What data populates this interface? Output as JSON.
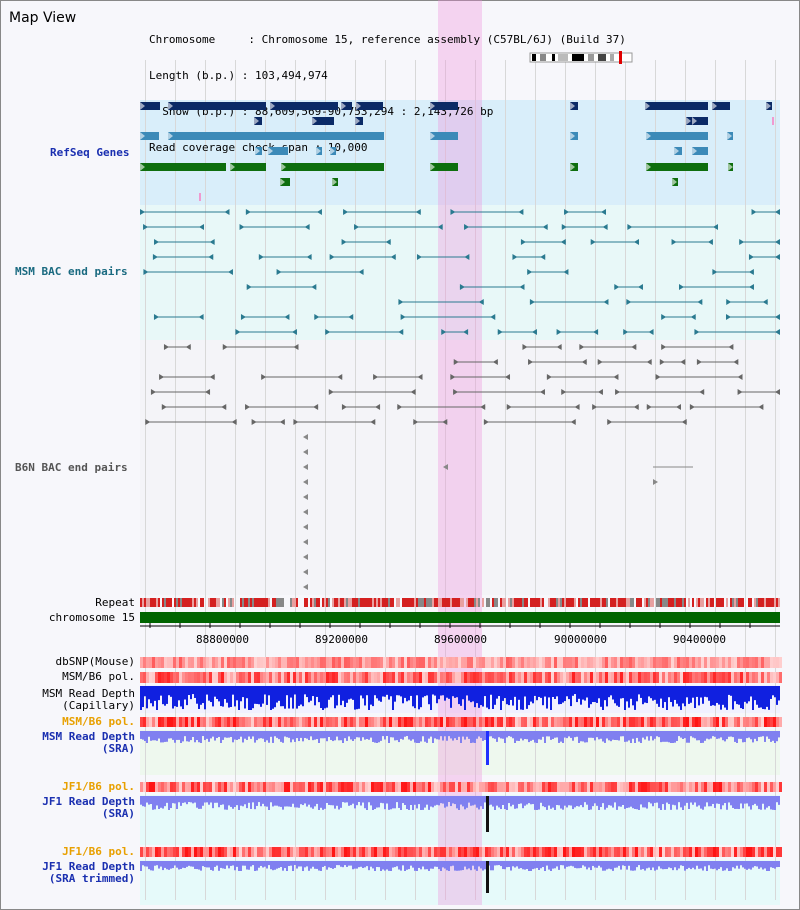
{
  "title": "Map View",
  "info": {
    "chromosome": "Chromosome     : Chromosome 15, reference assembly (C57BL/6J) (Build 37)",
    "length": "Length (b.p.) : 103,494,974",
    "show": "  Show (b.p.) : 88,609,569-90,753,294 : 2,143,726 bp",
    "coverage": "Read coverage check span : 10,000"
  },
  "tracks": {
    "refseq": "RefSeq Genes",
    "msm_bac": "MSM BAC end pairs",
    "b6n_bac": "B6N BAC end pairs",
    "repeat": "Repeat",
    "chromosome": "chromosome 15",
    "dbsnp": "dbSNP(Mouse)",
    "msm_b6_pol": "MSM/B6 pol.",
    "msm_read_depth": "MSM Read Depth",
    "capillary": "(Capillary)",
    "sra": "(SRA)",
    "jf1_b6_pol": "JF1/B6 pol.",
    "jf1_read_depth": "JF1 Read Depth",
    "sra_trimmed": "(SRA trimmed)"
  },
  "axis": {
    "ticks": [
      "88800000",
      "89200000",
      "89600000",
      "90000000",
      "90400000"
    ]
  },
  "region": {
    "start": 88609569,
    "end": 90753294,
    "highlight_start": 89570000,
    "highlight_end": 89715000
  },
  "colors": {
    "refseq_dark": "#0b2a66",
    "refseq_mid": "#3c8ab8",
    "refseq_green": "#0e6e0e",
    "msm_bac": "#2a7a90",
    "b6n_bac": "#666666",
    "chromosome_bar": "#006400",
    "depth_capillary": "#1020e0",
    "depth_sra": "#8080f0",
    "highlight": "#f08cdc"
  }
}
